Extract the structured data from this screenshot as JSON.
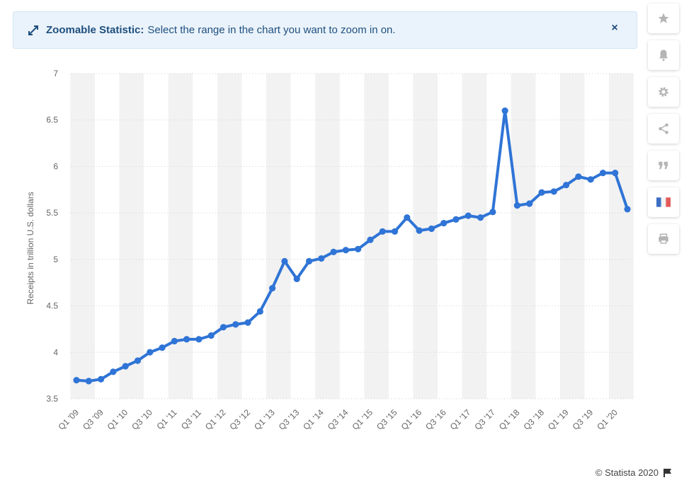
{
  "banner": {
    "title": "Zoomable Statistic:",
    "message": "Select the range in the chart you want to zoom in on.",
    "close_label": "×"
  },
  "toolbar": {
    "icons": [
      "star-icon",
      "bell-icon",
      "gear-icon",
      "share-icon",
      "quote-icon",
      "flag-fr-icon",
      "print-icon"
    ]
  },
  "footer": {
    "credit": "© Statista 2020"
  },
  "colors": {
    "line": "#2f74d6",
    "band": "#f2f2f2",
    "grid": "#cfcfcf",
    "banner_bg": "#eaf3fb",
    "banner_text": "#1f4f7e"
  },
  "chart_data": {
    "type": "line",
    "title": "",
    "xlabel": "",
    "ylabel": "Receipts in trillion U.S. dollars",
    "ylim": [
      3.5,
      7
    ],
    "yticks": [
      3.5,
      4,
      4.5,
      5,
      5.5,
      6,
      6.5,
      7
    ],
    "grid": true,
    "x_tick_labels": [
      "Q1 '09",
      "Q3 '09",
      "Q1 '10",
      "Q3 '10",
      "Q1 '11",
      "Q3 '11",
      "Q1 '12",
      "Q3 '12",
      "Q1 '13",
      "Q3 '13",
      "Q1 '14",
      "Q3 '14",
      "Q1 '15",
      "Q3 '15",
      "Q1 '16",
      "Q3 '16",
      "Q1 '17",
      "Q3 '17",
      "Q1 '18",
      "Q3 '18",
      "Q1 '19",
      "Q3 '19",
      "Q1 '20"
    ],
    "categories": [
      "Q1 '09",
      "Q2 '09",
      "Q3 '09",
      "Q4 '09",
      "Q1 '10",
      "Q2 '10",
      "Q3 '10",
      "Q4 '10",
      "Q1 '11",
      "Q2 '11",
      "Q3 '11",
      "Q4 '11",
      "Q1 '12",
      "Q2 '12",
      "Q3 '12",
      "Q4 '12",
      "Q1 '13",
      "Q2 '13",
      "Q3 '13",
      "Q4 '13",
      "Q1 '14",
      "Q2 '14",
      "Q3 '14",
      "Q4 '14",
      "Q1 '15",
      "Q2 '15",
      "Q3 '15",
      "Q4 '15",
      "Q1 '16",
      "Q2 '16",
      "Q3 '16",
      "Q4 '16",
      "Q1 '17",
      "Q2 '17",
      "Q3 '17",
      "Q4 '17",
      "Q1 '18",
      "Q2 '18",
      "Q3 '18",
      "Q4 '18",
      "Q1 '19",
      "Q2 '19",
      "Q3 '19",
      "Q4 '19",
      "Q1 '20",
      "Q2 '20"
    ],
    "series": [
      {
        "name": "",
        "values": [
          3.7,
          3.69,
          3.71,
          3.79,
          3.85,
          3.91,
          4.0,
          4.05,
          4.12,
          4.14,
          4.14,
          4.18,
          4.27,
          4.3,
          4.32,
          4.44,
          4.69,
          4.98,
          4.79,
          4.98,
          5.01,
          5.08,
          5.1,
          5.11,
          5.21,
          5.3,
          5.3,
          5.45,
          5.31,
          5.33,
          5.39,
          5.43,
          5.47,
          5.45,
          5.51,
          6.6,
          5.58,
          5.6,
          5.72,
          5.73,
          5.8,
          5.89,
          5.86,
          5.93,
          5.93,
          5.54
        ]
      }
    ]
  }
}
